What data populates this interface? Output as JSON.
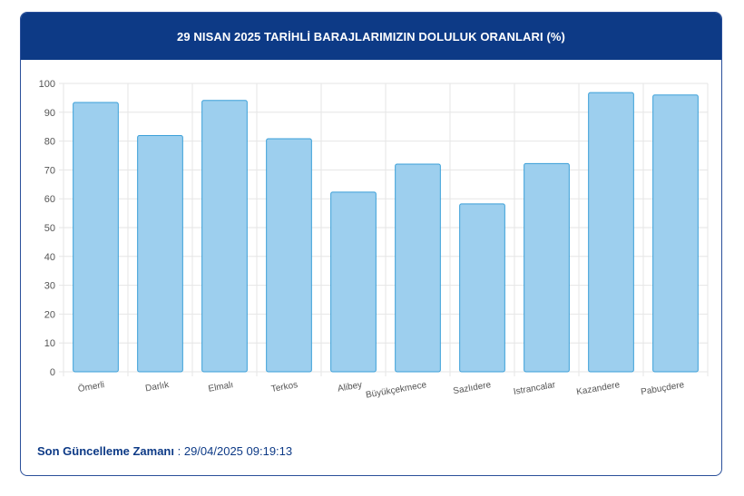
{
  "header": {
    "title": "29 NISAN 2025 TARİHLİ BARAJLARIMIZIN DOLULUK ORANLARI (%)"
  },
  "chart_data": {
    "type": "bar",
    "categories": [
      "Ömerli",
      "Darlık",
      "Elmalı",
      "Terkos",
      "Alibey",
      "Büyükçekmece",
      "Sazlıdere",
      "Istrancalar",
      "Kazandere",
      "Pabuçdere"
    ],
    "values": [
      93.4,
      81.9,
      94.1,
      80.8,
      62.3,
      72.0,
      58.2,
      72.2,
      96.8,
      96.0
    ],
    "ylim": [
      0,
      100
    ],
    "yticks": [
      0,
      10,
      20,
      30,
      40,
      50,
      60,
      70,
      80,
      90,
      100
    ],
    "grid": true,
    "colors": {
      "bar_fill": "#9dcfee",
      "bar_stroke": "#3a9fd8",
      "grid": "#e6e6e6",
      "tick_text": "#555555"
    }
  },
  "footer": {
    "label": "Son Güncelleme Zamanı",
    "separator": " : ",
    "value": "29/04/2025 09:19:13"
  }
}
